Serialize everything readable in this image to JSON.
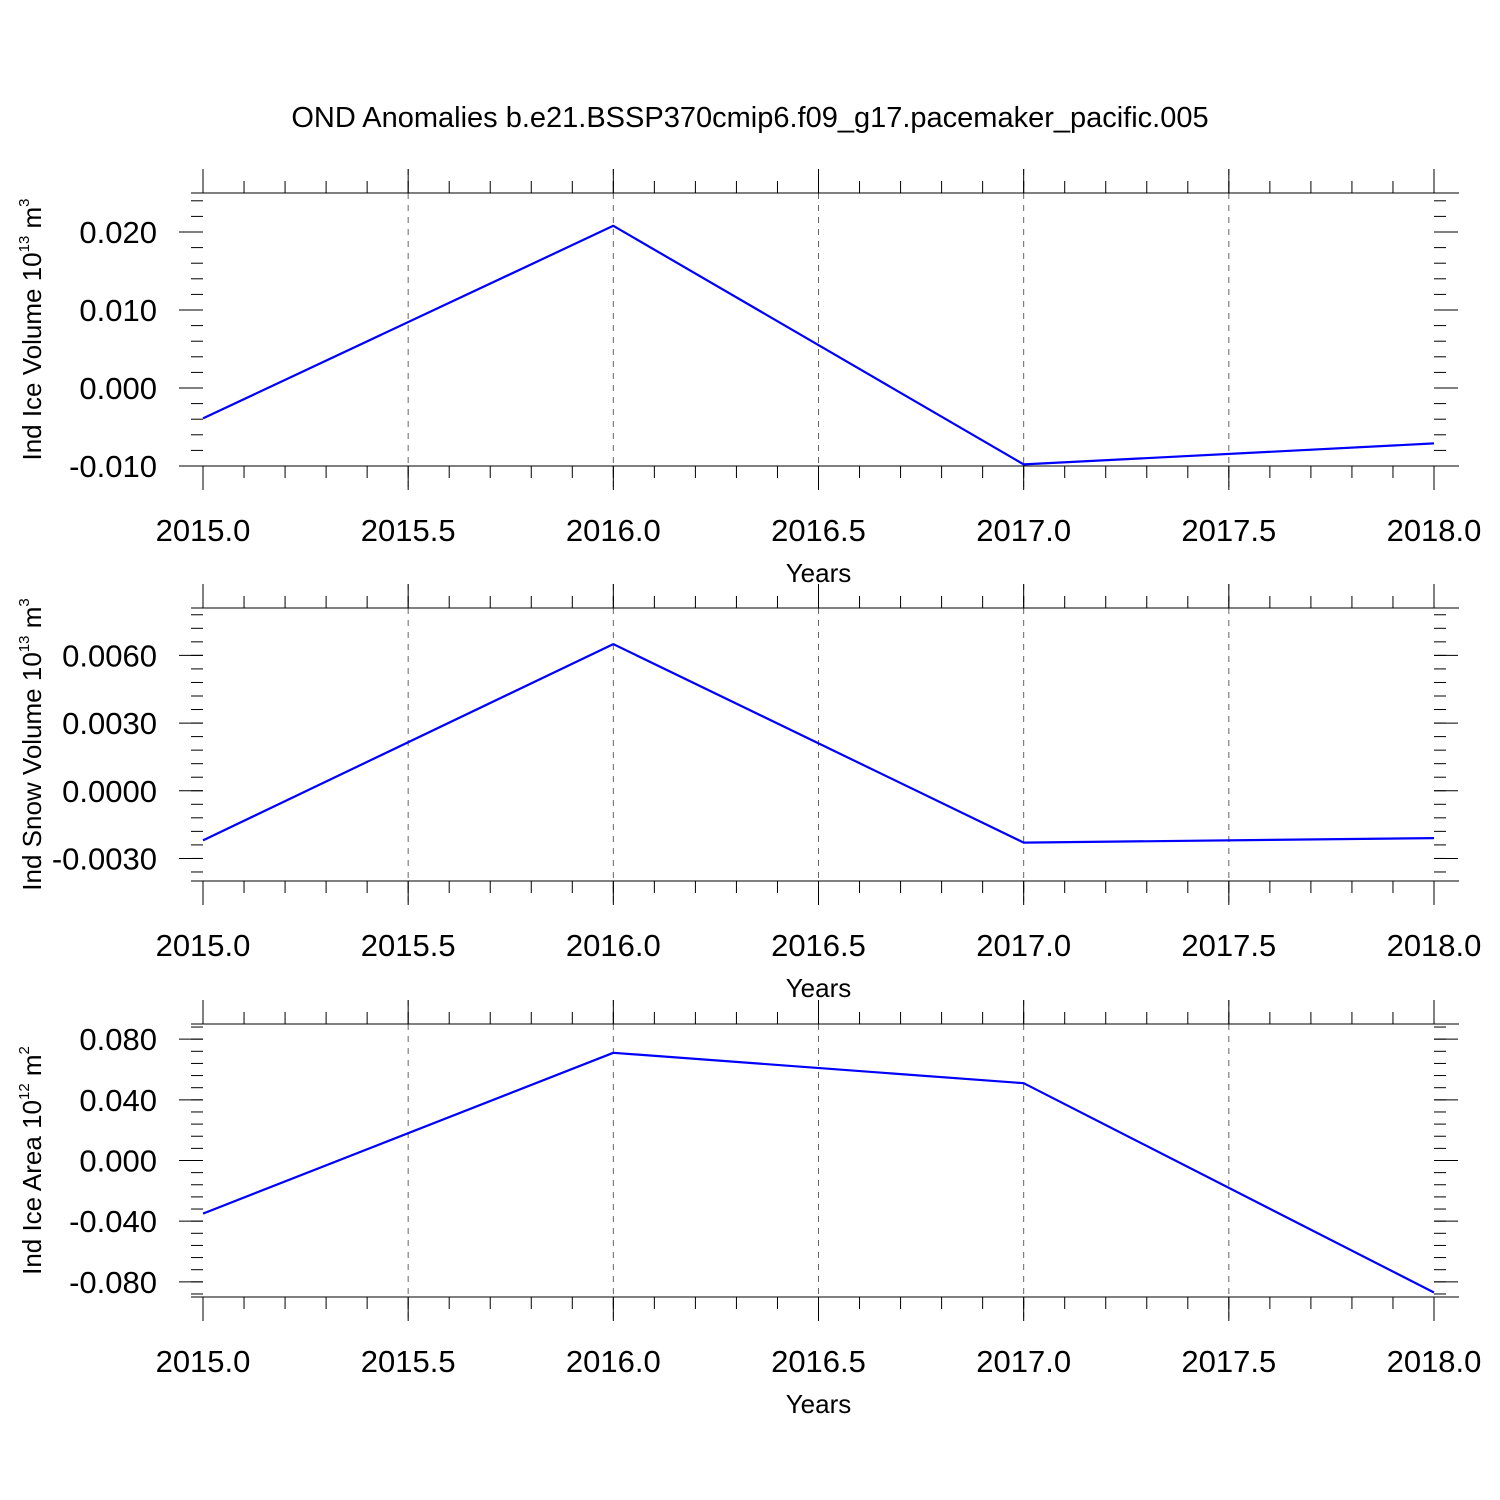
{
  "figure": {
    "title": "OND Anomalies b.e21.BSSP370cmip6.f09_g17.pacemaker_pacific.005",
    "line_color": "#0000ff"
  },
  "chart_data": [
    {
      "type": "line",
      "xlabel": "Years",
      "ylabel": "Ind Ice Volume 10",
      "ylabel_exp": "13",
      "ylabel_unit": " m",
      "ylabel_unit_exp": "3",
      "x": [
        2015,
        2016,
        2017,
        2018
      ],
      "series": [
        {
          "values": [
            -0.0039,
            0.0208,
            -0.0098,
            -0.0071
          ]
        }
      ],
      "xlim": [
        2015,
        2018
      ],
      "ylim": [
        -0.01,
        0.025
      ],
      "xticks": [
        2015.0,
        2015.5,
        2016.0,
        2016.5,
        2017.0,
        2017.5,
        2018.0
      ],
      "xtick_labels": [
        "2015.0",
        "2015.5",
        "2016.0",
        "2016.5",
        "2017.0",
        "2017.5",
        "2018.0"
      ],
      "yticks": [
        -0.01,
        0.0,
        0.01,
        0.02
      ],
      "ytick_labels": [
        "-0.010",
        "0.000",
        "0.010",
        "0.020"
      ],
      "yminor_step": 0.002,
      "grid": "vertical-dashed"
    },
    {
      "type": "line",
      "xlabel": "Years",
      "ylabel": "Ind Snow Volume 10",
      "ylabel_exp": "13",
      "ylabel_unit": " m",
      "ylabel_unit_exp": "3",
      "x": [
        2015,
        2016,
        2017,
        2018
      ],
      "series": [
        {
          "values": [
            -0.0022,
            0.0065,
            -0.0023,
            -0.0021
          ]
        }
      ],
      "xlim": [
        2015,
        2018
      ],
      "ylim": [
        -0.004,
        0.0081
      ],
      "xticks": [
        2015.0,
        2015.5,
        2016.0,
        2016.5,
        2017.0,
        2017.5,
        2018.0
      ],
      "xtick_labels": [
        "2015.0",
        "2015.5",
        "2016.0",
        "2016.5",
        "2017.0",
        "2017.5",
        "2018.0"
      ],
      "yticks": [
        -0.003,
        0.0,
        0.003,
        0.006
      ],
      "ytick_labels": [
        "-0.0030",
        "0.0000",
        "0.0030",
        "0.0060"
      ],
      "yminor_step": 0.0006,
      "grid": "vertical-dashed"
    },
    {
      "type": "line",
      "xlabel": "Years",
      "ylabel": "Ind Ice Area 10",
      "ylabel_exp": "12",
      "ylabel_unit": " m",
      "ylabel_unit_exp": "2",
      "x": [
        2015,
        2016,
        2017,
        2018
      ],
      "series": [
        {
          "values": [
            -0.035,
            0.071,
            0.051,
            -0.087
          ]
        }
      ],
      "xlim": [
        2015,
        2018
      ],
      "ylim": [
        -0.09,
        0.09
      ],
      "xticks": [
        2015.0,
        2015.5,
        2016.0,
        2016.5,
        2017.0,
        2017.5,
        2018.0
      ],
      "xtick_labels": [
        "2015.0",
        "2015.5",
        "2016.0",
        "2016.5",
        "2017.0",
        "2017.5",
        "2018.0"
      ],
      "yticks": [
        -0.08,
        -0.04,
        0.0,
        0.04,
        0.08
      ],
      "ytick_labels": [
        "-0.080",
        "-0.040",
        "0.000",
        "0.040",
        "0.080"
      ],
      "yminor_step": 0.008,
      "grid": "vertical-dashed"
    }
  ]
}
